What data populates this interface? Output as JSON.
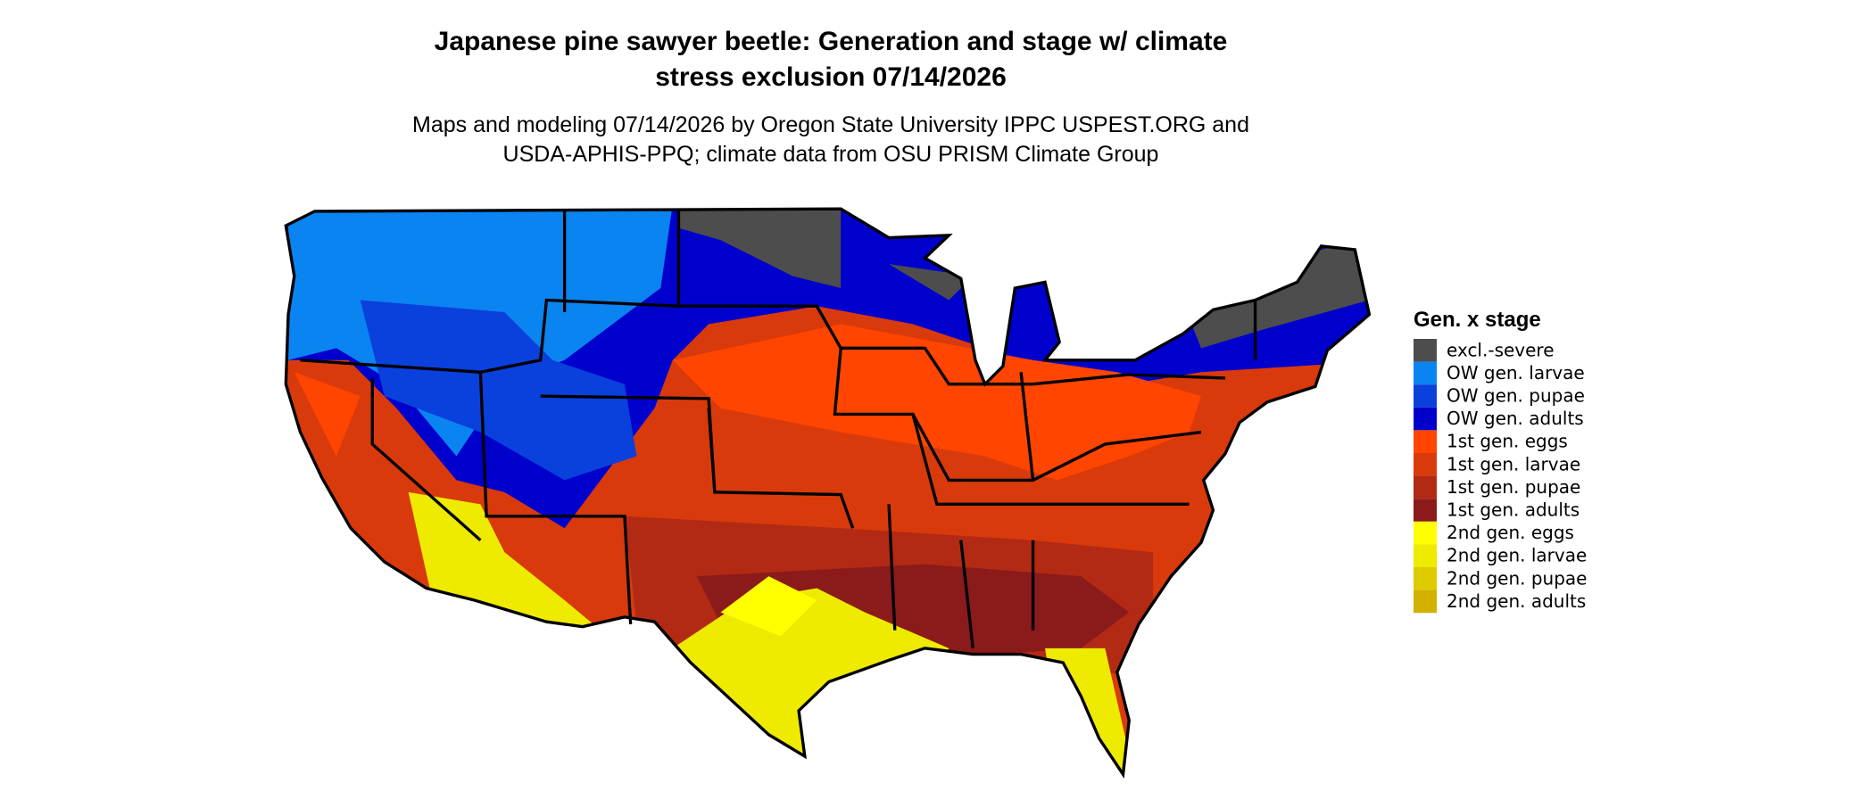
{
  "header": {
    "title": [
      "Japanese pine sawyer beetle: Generation and stage w/ climate",
      "stress exclusion 07/14/2026"
    ],
    "subtitle": [
      "Maps and modeling 07/14/2026 by Oregon State University IPPC USPEST.ORG and",
      "USDA-APHIS-PPQ; climate data from OSU PRISM Climate Group"
    ]
  },
  "legend": {
    "title": "Gen. x stage",
    "items": [
      {
        "label": "excl.-severe",
        "color": "#4d4d4d"
      },
      {
        "label": "OW gen. larvae",
        "color": "#0a84f0"
      },
      {
        "label": "OW gen. pupae",
        "color": "#0a40dc"
      },
      {
        "label": "OW gen. adults",
        "color": "#0000cd"
      },
      {
        "label": "1st gen. eggs",
        "color": "#ff4500"
      },
      {
        "label": "1st gen. larvae",
        "color": "#d93a0c"
      },
      {
        "label": "1st gen. pupae",
        "color": "#b22a14"
      },
      {
        "label": "1st gen. adults",
        "color": "#8b1a1a"
      },
      {
        "label": "2nd gen. eggs",
        "color": "#ffff00"
      },
      {
        "label": "2nd gen. larvae",
        "color": "#eeea00"
      },
      {
        "label": "2nd gen. pupae",
        "color": "#ddcc00"
      },
      {
        "label": "2nd gen. adults",
        "color": "#d4b000"
      }
    ]
  }
}
